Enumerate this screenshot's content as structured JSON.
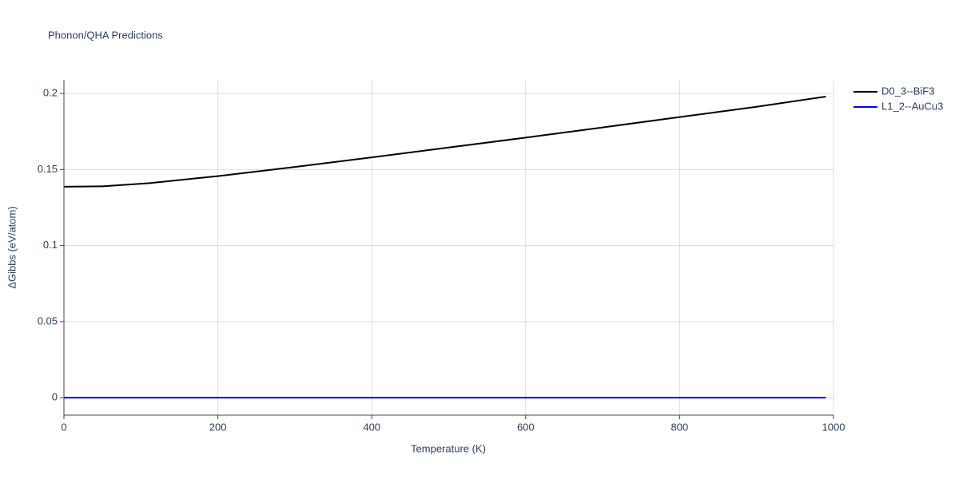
{
  "chart_data": {
    "type": "line",
    "title": "Phonon/QHA Predictions",
    "x_label": "Temperature (K)",
    "y_label": "ΔGibbs (eV/atom)",
    "xlim": [
      0,
      1000
    ],
    "xticks": [
      0,
      200,
      400,
      600,
      800,
      1000
    ],
    "ylim": [
      -0.0115,
      0.209
    ],
    "yticks": [
      0,
      0.05,
      0.1,
      0.15,
      0.2
    ],
    "grid": true,
    "legend": "top-right",
    "series": [
      {
        "name": "D0_3--BiF3",
        "color": "#000000",
        "x": [
          0,
          50,
          110,
          200,
          300,
          400,
          500,
          600,
          700,
          800,
          900,
          990
        ],
        "values": [
          0.1387,
          0.139,
          0.141,
          0.1457,
          0.1517,
          0.158,
          0.1645,
          0.171,
          0.1777,
          0.1845,
          0.1913,
          0.198
        ]
      },
      {
        "name": "L1_2--AuCu3",
        "color": "#0000ff",
        "x": [
          0,
          990
        ],
        "values": [
          0,
          0
        ]
      }
    ]
  }
}
